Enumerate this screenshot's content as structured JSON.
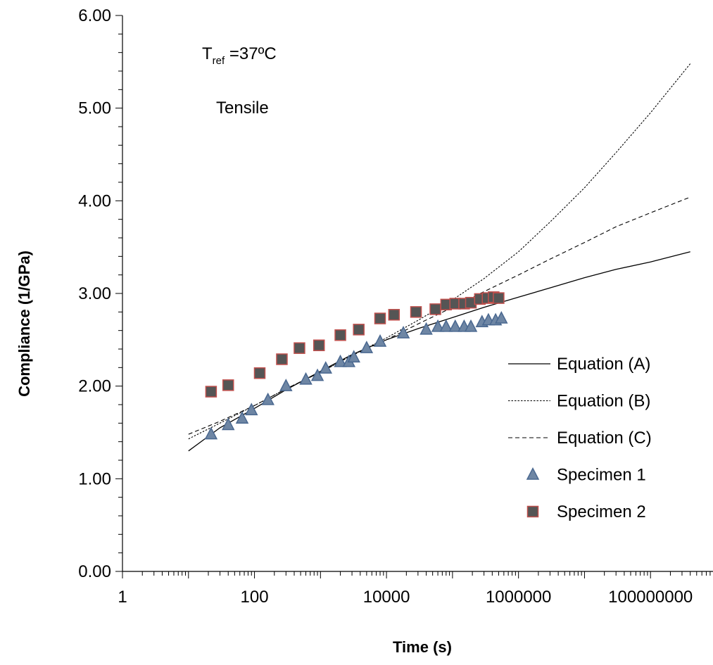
{
  "chart_data": {
    "type": "scatter",
    "title": "",
    "xlabel": "Time (s)",
    "ylabel": "Compliance (1/GPa)",
    "x_scale": "log",
    "xlim": [
      1,
      1000000000
    ],
    "ylim": [
      0,
      6
    ],
    "x_tick_values": [
      1,
      100,
      10000,
      1000000,
      100000000
    ],
    "x_tick_labels": [
      "1",
      "100",
      "10000",
      "1000000",
      "100000000"
    ],
    "y_tick_values": [
      0,
      1,
      2,
      3,
      4,
      5,
      6
    ],
    "y_tick_labels": [
      "0.00",
      "1.00",
      "2.00",
      "3.00",
      "4.00",
      "5.00",
      "6.00"
    ],
    "grid": false,
    "legend_position": "right",
    "annotations": {
      "tref_main": "T",
      "tref_sub": "ref",
      "tref_rest": " =37ºC",
      "mode": "Tensile"
    },
    "series": [
      {
        "name": "Equation (A)",
        "kind": "line",
        "dash": "solid",
        "color": "#000000",
        "x": [
          10,
          30,
          100,
          300,
          1000,
          3000,
          10000,
          30000,
          100000,
          300000,
          1000000,
          3000000,
          10000000,
          30000000,
          100000000,
          400000000
        ],
        "y": [
          1.3,
          1.55,
          1.76,
          1.96,
          2.16,
          2.34,
          2.5,
          2.62,
          2.74,
          2.85,
          2.96,
          3.06,
          3.17,
          3.26,
          3.34,
          3.45
        ]
      },
      {
        "name": "Equation (B)",
        "kind": "line",
        "dash": "dotted",
        "color": "#000000",
        "x": [
          10,
          30,
          100,
          300,
          1000,
          3000,
          10000,
          30000,
          100000,
          300000,
          1000000,
          3000000,
          10000000,
          30000000,
          100000000,
          400000000
        ],
        "y": [
          1.43,
          1.6,
          1.79,
          1.97,
          2.15,
          2.33,
          2.52,
          2.71,
          2.93,
          3.16,
          3.45,
          3.77,
          4.14,
          4.52,
          4.95,
          5.48
        ]
      },
      {
        "name": "Equation (C)",
        "kind": "line",
        "dash": "dashed",
        "color": "#000000",
        "x": [
          10,
          30,
          100,
          300,
          1000,
          3000,
          10000,
          30000,
          100000,
          300000,
          1000000,
          3000000,
          10000000,
          30000000,
          100000000,
          400000000
        ],
        "y": [
          1.48,
          1.62,
          1.79,
          1.97,
          2.15,
          2.33,
          2.5,
          2.67,
          2.85,
          3.02,
          3.2,
          3.37,
          3.55,
          3.72,
          3.87,
          4.04
        ]
      },
      {
        "name": "Specimen 1",
        "kind": "marker",
        "marker": "triangle",
        "fill": "#6e86a4",
        "stroke": "#4a6890",
        "x": [
          22,
          40,
          65,
          90,
          160,
          300,
          600,
          900,
          1200,
          2000,
          2700,
          3200,
          5000,
          8000,
          18000,
          40000,
          60000,
          80000,
          110000,
          150000,
          190000,
          280000,
          350000,
          450000,
          550000
        ],
        "y": [
          1.48,
          1.58,
          1.65,
          1.74,
          1.85,
          2.0,
          2.07,
          2.11,
          2.19,
          2.26,
          2.26,
          2.31,
          2.41,
          2.48,
          2.57,
          2.61,
          2.64,
          2.64,
          2.64,
          2.64,
          2.64,
          2.69,
          2.71,
          2.71,
          2.73
        ]
      },
      {
        "name": "Specimen 2",
        "kind": "marker",
        "marker": "square",
        "fill": "#555555",
        "stroke": "#c0504d",
        "x": [
          22,
          40,
          120,
          260,
          480,
          950,
          2000,
          3800,
          8000,
          13000,
          28000,
          55000,
          80000,
          110000,
          150000,
          190000,
          260000,
          340000,
          420000,
          500000
        ],
        "y": [
          1.94,
          2.01,
          2.14,
          2.29,
          2.41,
          2.44,
          2.55,
          2.61,
          2.73,
          2.77,
          2.8,
          2.83,
          2.88,
          2.89,
          2.89,
          2.9,
          2.94,
          2.95,
          2.96,
          2.95
        ]
      }
    ]
  }
}
